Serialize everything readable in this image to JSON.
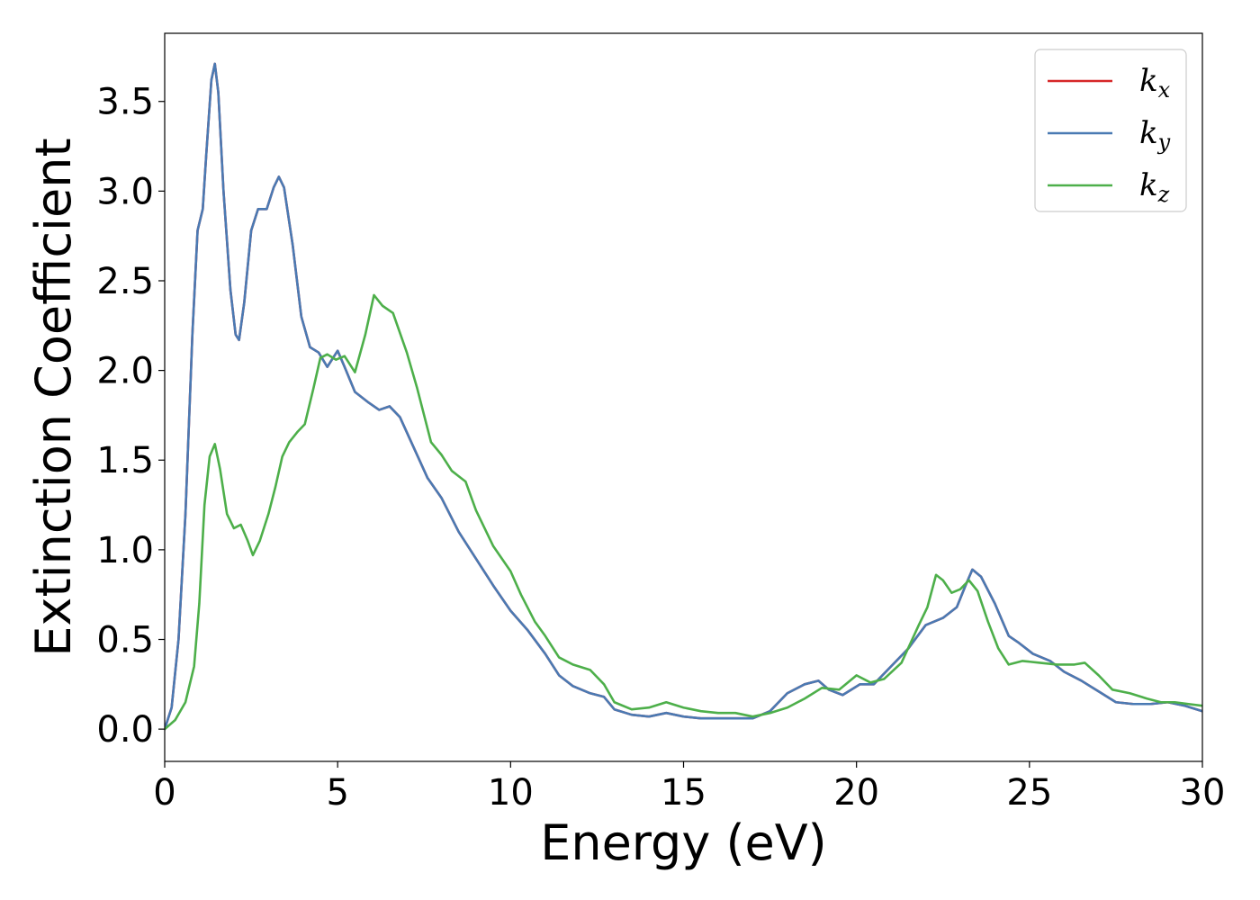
{
  "chart_data": {
    "type": "line",
    "title": "",
    "xlabel": "Energy (eV)",
    "ylabel": "Extinction Coefficient",
    "xlim": [
      0,
      30
    ],
    "ylim": [
      -0.18,
      3.88
    ],
    "xticks": [
      0,
      5,
      10,
      15,
      20,
      25,
      30
    ],
    "xtick_labels": [
      "0",
      "5",
      "10",
      "15",
      "20",
      "25",
      "30"
    ],
    "yticks": [
      0.0,
      0.5,
      1.0,
      1.5,
      2.0,
      2.5,
      3.0,
      3.5
    ],
    "ytick_labels": [
      "0.0",
      "0.5",
      "1.0",
      "1.5",
      "2.0",
      "2.5",
      "3.0",
      "3.5"
    ],
    "grid": false,
    "legend_position": "top-right",
    "series": [
      {
        "name": "k",
        "subscript": "x",
        "color": "#d62728",
        "points": [
          [
            0,
            0
          ],
          [
            0.2,
            0.12
          ],
          [
            0.4,
            0.5
          ],
          [
            0.6,
            1.2
          ],
          [
            0.8,
            2.2
          ],
          [
            0.95,
            2.78
          ],
          [
            1.1,
            2.9
          ],
          [
            1.2,
            3.2
          ],
          [
            1.35,
            3.62
          ],
          [
            1.45,
            3.71
          ],
          [
            1.55,
            3.55
          ],
          [
            1.7,
            3.0
          ],
          [
            1.9,
            2.45
          ],
          [
            2.05,
            2.2
          ],
          [
            2.15,
            2.17
          ],
          [
            2.3,
            2.38
          ],
          [
            2.5,
            2.78
          ],
          [
            2.7,
            2.9
          ],
          [
            2.95,
            2.9
          ],
          [
            3.15,
            3.02
          ],
          [
            3.3,
            3.08
          ],
          [
            3.45,
            3.02
          ],
          [
            3.7,
            2.7
          ],
          [
            3.95,
            2.3
          ],
          [
            4.2,
            2.13
          ],
          [
            4.45,
            2.1
          ],
          [
            4.7,
            2.02
          ],
          [
            5.0,
            2.11
          ],
          [
            5.2,
            2.02
          ],
          [
            5.5,
            1.88
          ],
          [
            5.9,
            1.82
          ],
          [
            6.2,
            1.78
          ],
          [
            6.5,
            1.8
          ],
          [
            6.8,
            1.74
          ],
          [
            7.2,
            1.57
          ],
          [
            7.6,
            1.4
          ],
          [
            8.0,
            1.29
          ],
          [
            8.5,
            1.1
          ],
          [
            9.0,
            0.95
          ],
          [
            9.5,
            0.8
          ],
          [
            10.0,
            0.66
          ],
          [
            10.5,
            0.55
          ],
          [
            11.0,
            0.42
          ],
          [
            11.4,
            0.3
          ],
          [
            11.8,
            0.24
          ],
          [
            12.3,
            0.2
          ],
          [
            12.7,
            0.18
          ],
          [
            13.0,
            0.11
          ],
          [
            13.5,
            0.08
          ],
          [
            14.0,
            0.07
          ],
          [
            14.5,
            0.09
          ],
          [
            15.0,
            0.07
          ],
          [
            15.5,
            0.06
          ],
          [
            16.0,
            0.06
          ],
          [
            16.5,
            0.06
          ],
          [
            17.0,
            0.06
          ],
          [
            17.5,
            0.1
          ],
          [
            18.0,
            0.2
          ],
          [
            18.5,
            0.25
          ],
          [
            18.9,
            0.27
          ],
          [
            19.2,
            0.22
          ],
          [
            19.6,
            0.19
          ],
          [
            20.1,
            0.25
          ],
          [
            20.5,
            0.25
          ],
          [
            21.0,
            0.35
          ],
          [
            21.5,
            0.45
          ],
          [
            22.0,
            0.58
          ],
          [
            22.5,
            0.62
          ],
          [
            22.9,
            0.68
          ],
          [
            23.15,
            0.8
          ],
          [
            23.35,
            0.89
          ],
          [
            23.6,
            0.85
          ],
          [
            24.0,
            0.7
          ],
          [
            24.4,
            0.52
          ],
          [
            24.7,
            0.48
          ],
          [
            25.1,
            0.42
          ],
          [
            25.6,
            0.38
          ],
          [
            26.0,
            0.32
          ],
          [
            26.5,
            0.27
          ],
          [
            27.0,
            0.21
          ],
          [
            27.5,
            0.15
          ],
          [
            28.0,
            0.14
          ],
          [
            28.5,
            0.14
          ],
          [
            29.0,
            0.15
          ],
          [
            29.5,
            0.13
          ],
          [
            30.0,
            0.1
          ]
        ]
      },
      {
        "name": "k",
        "subscript": "y",
        "color": "#4a7ab3",
        "points": [
          [
            0,
            0
          ],
          [
            0.2,
            0.12
          ],
          [
            0.4,
            0.5
          ],
          [
            0.6,
            1.2
          ],
          [
            0.8,
            2.2
          ],
          [
            0.95,
            2.78
          ],
          [
            1.1,
            2.9
          ],
          [
            1.2,
            3.2
          ],
          [
            1.35,
            3.62
          ],
          [
            1.45,
            3.71
          ],
          [
            1.55,
            3.55
          ],
          [
            1.7,
            3.0
          ],
          [
            1.9,
            2.45
          ],
          [
            2.05,
            2.2
          ],
          [
            2.15,
            2.17
          ],
          [
            2.3,
            2.38
          ],
          [
            2.5,
            2.78
          ],
          [
            2.7,
            2.9
          ],
          [
            2.95,
            2.9
          ],
          [
            3.15,
            3.02
          ],
          [
            3.3,
            3.08
          ],
          [
            3.45,
            3.02
          ],
          [
            3.7,
            2.7
          ],
          [
            3.95,
            2.3
          ],
          [
            4.2,
            2.13
          ],
          [
            4.45,
            2.1
          ],
          [
            4.7,
            2.02
          ],
          [
            5.0,
            2.11
          ],
          [
            5.2,
            2.02
          ],
          [
            5.5,
            1.88
          ],
          [
            5.9,
            1.82
          ],
          [
            6.2,
            1.78
          ],
          [
            6.5,
            1.8
          ],
          [
            6.8,
            1.74
          ],
          [
            7.2,
            1.57
          ],
          [
            7.6,
            1.4
          ],
          [
            8.0,
            1.29
          ],
          [
            8.5,
            1.1
          ],
          [
            9.0,
            0.95
          ],
          [
            9.5,
            0.8
          ],
          [
            10.0,
            0.66
          ],
          [
            10.5,
            0.55
          ],
          [
            11.0,
            0.42
          ],
          [
            11.4,
            0.3
          ],
          [
            11.8,
            0.24
          ],
          [
            12.3,
            0.2
          ],
          [
            12.7,
            0.18
          ],
          [
            13.0,
            0.11
          ],
          [
            13.5,
            0.08
          ],
          [
            14.0,
            0.07
          ],
          [
            14.5,
            0.09
          ],
          [
            15.0,
            0.07
          ],
          [
            15.5,
            0.06
          ],
          [
            16.0,
            0.06
          ],
          [
            16.5,
            0.06
          ],
          [
            17.0,
            0.06
          ],
          [
            17.5,
            0.1
          ],
          [
            18.0,
            0.2
          ],
          [
            18.5,
            0.25
          ],
          [
            18.9,
            0.27
          ],
          [
            19.2,
            0.22
          ],
          [
            19.6,
            0.19
          ],
          [
            20.1,
            0.25
          ],
          [
            20.5,
            0.25
          ],
          [
            21.0,
            0.35
          ],
          [
            21.5,
            0.45
          ],
          [
            22.0,
            0.58
          ],
          [
            22.5,
            0.62
          ],
          [
            22.9,
            0.68
          ],
          [
            23.15,
            0.8
          ],
          [
            23.35,
            0.89
          ],
          [
            23.6,
            0.85
          ],
          [
            24.0,
            0.7
          ],
          [
            24.4,
            0.52
          ],
          [
            24.7,
            0.48
          ],
          [
            25.1,
            0.42
          ],
          [
            25.6,
            0.38
          ],
          [
            26.0,
            0.32
          ],
          [
            26.5,
            0.27
          ],
          [
            27.0,
            0.21
          ],
          [
            27.5,
            0.15
          ],
          [
            28.0,
            0.14
          ],
          [
            28.5,
            0.14
          ],
          [
            29.0,
            0.15
          ],
          [
            29.5,
            0.13
          ],
          [
            30.0,
            0.1
          ]
        ]
      },
      {
        "name": "k",
        "subscript": "z",
        "color": "#4daf4a",
        "points": [
          [
            0,
            0
          ],
          [
            0.3,
            0.05
          ],
          [
            0.6,
            0.15
          ],
          [
            0.85,
            0.35
          ],
          [
            1.0,
            0.7
          ],
          [
            1.15,
            1.25
          ],
          [
            1.3,
            1.52
          ],
          [
            1.45,
            1.59
          ],
          [
            1.6,
            1.45
          ],
          [
            1.8,
            1.2
          ],
          [
            2.0,
            1.12
          ],
          [
            2.2,
            1.14
          ],
          [
            2.4,
            1.05
          ],
          [
            2.55,
            0.97
          ],
          [
            2.75,
            1.05
          ],
          [
            3.0,
            1.2
          ],
          [
            3.2,
            1.35
          ],
          [
            3.4,
            1.52
          ],
          [
            3.6,
            1.6
          ],
          [
            3.85,
            1.66
          ],
          [
            4.05,
            1.7
          ],
          [
            4.3,
            1.9
          ],
          [
            4.5,
            2.07
          ],
          [
            4.7,
            2.09
          ],
          [
            4.95,
            2.06
          ],
          [
            5.2,
            2.08
          ],
          [
            5.5,
            1.99
          ],
          [
            5.8,
            2.2
          ],
          [
            6.05,
            2.42
          ],
          [
            6.3,
            2.36
          ],
          [
            6.6,
            2.32
          ],
          [
            7.0,
            2.1
          ],
          [
            7.3,
            1.9
          ],
          [
            7.7,
            1.6
          ],
          [
            8.0,
            1.53
          ],
          [
            8.3,
            1.44
          ],
          [
            8.7,
            1.38
          ],
          [
            9.0,
            1.22
          ],
          [
            9.5,
            1.02
          ],
          [
            10.0,
            0.88
          ],
          [
            10.3,
            0.75
          ],
          [
            10.7,
            0.6
          ],
          [
            11.0,
            0.52
          ],
          [
            11.4,
            0.4
          ],
          [
            11.8,
            0.36
          ],
          [
            12.3,
            0.33
          ],
          [
            12.7,
            0.25
          ],
          [
            13.0,
            0.15
          ],
          [
            13.5,
            0.11
          ],
          [
            14.0,
            0.12
          ],
          [
            14.5,
            0.15
          ],
          [
            15.0,
            0.12
          ],
          [
            15.5,
            0.1
          ],
          [
            16.0,
            0.09
          ],
          [
            16.5,
            0.09
          ],
          [
            17.0,
            0.07
          ],
          [
            17.5,
            0.09
          ],
          [
            18.0,
            0.12
          ],
          [
            18.5,
            0.17
          ],
          [
            19.0,
            0.23
          ],
          [
            19.5,
            0.22
          ],
          [
            20.0,
            0.3
          ],
          [
            20.4,
            0.26
          ],
          [
            20.8,
            0.28
          ],
          [
            21.3,
            0.37
          ],
          [
            21.8,
            0.58
          ],
          [
            22.05,
            0.68
          ],
          [
            22.3,
            0.86
          ],
          [
            22.5,
            0.83
          ],
          [
            22.75,
            0.76
          ],
          [
            23.0,
            0.78
          ],
          [
            23.25,
            0.83
          ],
          [
            23.5,
            0.77
          ],
          [
            23.8,
            0.6
          ],
          [
            24.1,
            0.45
          ],
          [
            24.4,
            0.36
          ],
          [
            24.8,
            0.38
          ],
          [
            25.3,
            0.37
          ],
          [
            25.8,
            0.36
          ],
          [
            26.3,
            0.36
          ],
          [
            26.6,
            0.37
          ],
          [
            27.0,
            0.3
          ],
          [
            27.4,
            0.22
          ],
          [
            27.9,
            0.2
          ],
          [
            28.4,
            0.17
          ],
          [
            28.8,
            0.15
          ],
          [
            29.2,
            0.15
          ],
          [
            29.6,
            0.14
          ],
          [
            30.0,
            0.13
          ]
        ]
      }
    ]
  }
}
